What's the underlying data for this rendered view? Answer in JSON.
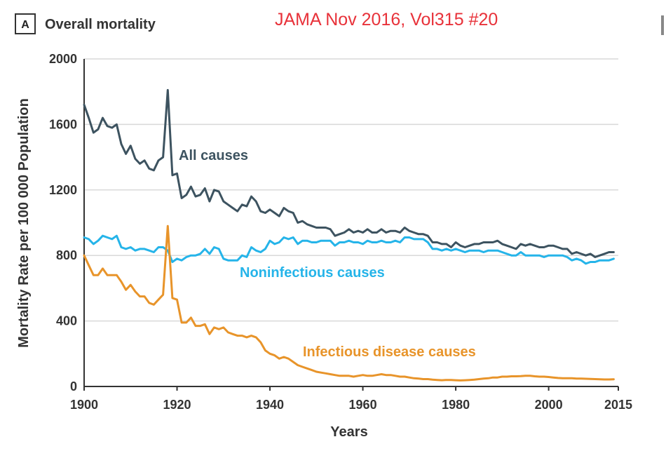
{
  "panel_letter": "A",
  "panel_title": "Overall mortality",
  "source_note": "JAMA Nov 2016, Vol315 #20",
  "colors": {
    "all_causes": "#3d5360",
    "noninfectious": "#25b4e9",
    "infectious": "#e8942a",
    "source_note": "#e8323a",
    "grid": "#d9d9d9",
    "axis": "#333333"
  },
  "chart_data": {
    "type": "line",
    "title": "Overall mortality",
    "xlabel": "Years",
    "ylabel": "Mortality Rate per 100 000 Population",
    "xlim": [
      1900,
      2015
    ],
    "ylim": [
      0,
      2000
    ],
    "grid": "horizontal",
    "x_ticks": [
      1900,
      1920,
      1940,
      1960,
      1980,
      2000,
      2015
    ],
    "x_tick_labels": [
      "1900",
      "1920",
      "1940",
      "1960",
      "1980",
      "2000",
      "2015"
    ],
    "y_ticks": [
      0,
      400,
      800,
      1200,
      1600,
      2000
    ],
    "y_tick_labels": [
      "0",
      "400",
      "800",
      "1200",
      "1600",
      "2000"
    ],
    "x": [
      1900,
      1901,
      1902,
      1903,
      1904,
      1905,
      1906,
      1907,
      1908,
      1909,
      1910,
      1911,
      1912,
      1913,
      1914,
      1915,
      1916,
      1917,
      1918,
      1919,
      1920,
      1921,
      1922,
      1923,
      1924,
      1925,
      1926,
      1927,
      1928,
      1929,
      1930,
      1931,
      1932,
      1933,
      1934,
      1935,
      1936,
      1937,
      1938,
      1939,
      1940,
      1941,
      1942,
      1943,
      1944,
      1945,
      1946,
      1947,
      1948,
      1949,
      1950,
      1951,
      1952,
      1953,
      1954,
      1955,
      1956,
      1957,
      1958,
      1959,
      1960,
      1961,
      1962,
      1963,
      1964,
      1965,
      1966,
      1967,
      1968,
      1969,
      1970,
      1971,
      1972,
      1973,
      1974,
      1975,
      1976,
      1977,
      1978,
      1979,
      1980,
      1981,
      1982,
      1983,
      1984,
      1985,
      1986,
      1987,
      1988,
      1989,
      1990,
      1991,
      1992,
      1993,
      1994,
      1995,
      1996,
      1997,
      1998,
      1999,
      2000,
      2001,
      2002,
      2003,
      2004,
      2005,
      2006,
      2007,
      2008,
      2009,
      2010,
      2011,
      2012,
      2013,
      2014
    ],
    "series": [
      {
        "name": "All causes",
        "color": "#3d5360",
        "values": [
          1720,
          1640,
          1550,
          1570,
          1640,
          1590,
          1580,
          1600,
          1480,
          1420,
          1470,
          1390,
          1360,
          1380,
          1330,
          1320,
          1380,
          1400,
          1810,
          1290,
          1300,
          1150,
          1170,
          1220,
          1160,
          1170,
          1210,
          1130,
          1200,
          1190,
          1130,
          1110,
          1090,
          1070,
          1110,
          1100,
          1160,
          1130,
          1070,
          1060,
          1080,
          1060,
          1040,
          1090,
          1070,
          1060,
          1000,
          1010,
          990,
          980,
          970,
          970,
          970,
          960,
          920,
          930,
          940,
          960,
          940,
          950,
          940,
          960,
          940,
          940,
          960,
          940,
          950,
          950,
          940,
          970,
          950,
          940,
          930,
          930,
          920,
          880,
          880,
          870,
          870,
          850,
          880,
          860,
          850,
          860,
          870,
          870,
          880,
          880,
          880,
          890,
          870,
          860,
          850,
          840,
          870,
          860,
          870,
          860,
          850,
          850,
          860,
          860,
          850,
          840,
          840,
          810,
          820,
          810,
          800,
          810,
          790,
          800,
          810,
          820,
          820
        ]
      },
      {
        "name": "Noninfectious causes",
        "color": "#25b4e9",
        "values": [
          910,
          900,
          870,
          890,
          920,
          910,
          900,
          920,
          850,
          840,
          850,
          830,
          840,
          840,
          830,
          820,
          850,
          850,
          830,
          760,
          780,
          770,
          790,
          800,
          800,
          810,
          840,
          810,
          850,
          840,
          780,
          770,
          770,
          770,
          800,
          790,
          850,
          830,
          820,
          840,
          890,
          870,
          880,
          910,
          900,
          910,
          870,
          890,
          890,
          880,
          880,
          890,
          890,
          890,
          860,
          880,
          880,
          890,
          880,
          880,
          870,
          890,
          880,
          880,
          890,
          880,
          880,
          890,
          880,
          910,
          910,
          900,
          900,
          900,
          880,
          840,
          840,
          830,
          840,
          830,
          840,
          830,
          820,
          830,
          830,
          830,
          820,
          830,
          830,
          830,
          820,
          810,
          800,
          800,
          820,
          800,
          800,
          800,
          800,
          790,
          800,
          800,
          800,
          800,
          790,
          770,
          780,
          770,
          750,
          760,
          760,
          770,
          770,
          770,
          780
        ]
      },
      {
        "name": "Infectious disease causes",
        "color": "#e8942a",
        "values": [
          800,
          740,
          680,
          680,
          720,
          680,
          680,
          680,
          640,
          590,
          620,
          580,
          550,
          550,
          510,
          500,
          530,
          560,
          980,
          540,
          530,
          390,
          390,
          420,
          370,
          370,
          380,
          320,
          360,
          350,
          360,
          330,
          320,
          310,
          310,
          300,
          310,
          300,
          270,
          220,
          200,
          190,
          170,
          180,
          170,
          150,
          130,
          120,
          110,
          100,
          90,
          85,
          80,
          75,
          70,
          65,
          65,
          65,
          60,
          65,
          70,
          65,
          65,
          70,
          75,
          70,
          70,
          65,
          60,
          60,
          55,
          50,
          48,
          45,
          45,
          42,
          40,
          38,
          40,
          40,
          38,
          37,
          38,
          40,
          42,
          45,
          48,
          50,
          55,
          55,
          60,
          60,
          62,
          62,
          63,
          65,
          65,
          62,
          60,
          60,
          58,
          55,
          52,
          50,
          50,
          50,
          48,
          48,
          47,
          46,
          45,
          44,
          43,
          43,
          44
        ]
      }
    ],
    "annotations": [
      "All causes",
      "Noninfectious causes",
      "Infectious disease causes"
    ]
  }
}
